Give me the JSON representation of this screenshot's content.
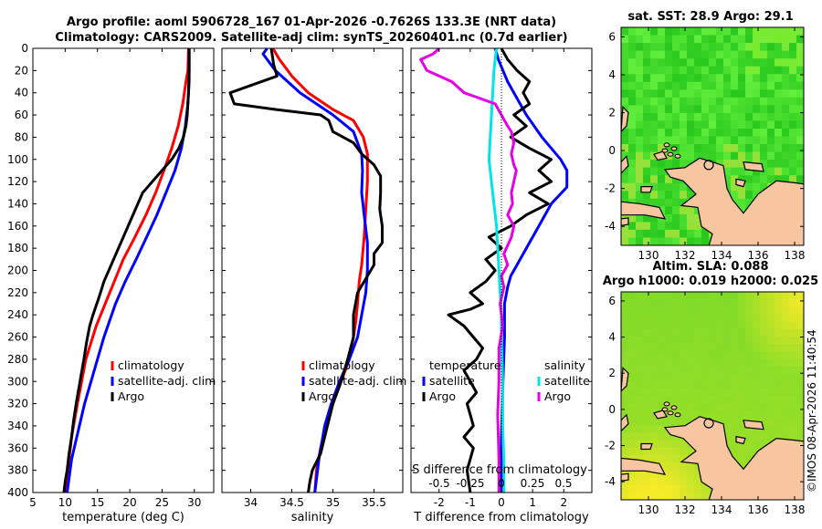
{
  "figure": {
    "title_line1": "Argo profile: aoml 5906728_167 01-Apr-2026 -0.7626S 133.3E (NRT data)",
    "title_line2": "Climatology: CARS2009. Satellite-adj clim: synTS_20260401.nc (0.7d earlier)",
    "watermark": "©IMOS 08-Apr-2026 11:40:54"
  },
  "colors": {
    "climatology": "#ff0000",
    "satellite": "#0000ff",
    "argo": "#000000",
    "salinity_satellite": "#00e5e5",
    "salinity_diff": "#e600e6"
  },
  "chart_data": [
    {
      "id": "temperature",
      "type": "line",
      "xlabel": "temperature (deg C)",
      "ylabel": "",
      "xlim": [
        5,
        33
      ],
      "ylim": [
        0,
        400
      ],
      "xticks": [
        5,
        10,
        15,
        20,
        25,
        30
      ],
      "yticks": [
        0,
        20,
        40,
        60,
        80,
        100,
        120,
        140,
        160,
        180,
        200,
        220,
        240,
        260,
        280,
        300,
        320,
        340,
        360,
        380,
        400
      ],
      "legend": [
        "climatology",
        "satellite-adj. clim",
        "Argo"
      ],
      "series": [
        {
          "name": "climatology",
          "x": [
            29.1,
            29.0,
            28.7,
            28.2,
            27.5,
            26.5,
            25.3,
            24.0,
            22.5,
            20.8,
            19.0,
            17.6,
            16.2,
            14.8,
            13.2,
            11.9,
            11.0,
            10.5,
            10.0
          ],
          "y": [
            0,
            20,
            30,
            50,
            70,
            90,
            110,
            130,
            150,
            170,
            190,
            210,
            230,
            250,
            280,
            320,
            350,
            375,
            400
          ]
        },
        {
          "name": "satellite-adj. clim",
          "x": [
            29.2,
            29.2,
            29.0,
            28.6,
            28.0,
            27.0,
            25.6,
            24.2,
            22.6,
            21.0,
            19.3,
            17.8,
            16.0,
            14.5,
            13.0,
            12.0,
            11.0,
            10.3
          ],
          "y": [
            0,
            30,
            50,
            70,
            90,
            110,
            130,
            150,
            170,
            190,
            210,
            230,
            260,
            290,
            320,
            345,
            370,
            400
          ]
        },
        {
          "name": "Argo",
          "x": [
            29.2,
            29.2,
            29.1,
            28.9,
            28.7,
            28.3,
            27.6,
            26.5,
            25.0,
            23.5,
            22.0,
            20.5,
            19.0,
            17.5,
            16.0,
            15.2,
            14.3,
            13.8,
            13.3,
            12.9,
            12.6,
            12.3,
            12.0,
            11.7,
            11.3,
            11.0,
            10.6,
            10.3,
            10.0,
            9.8
          ],
          "y": [
            0,
            20,
            40,
            60,
            70,
            80,
            90,
            100,
            110,
            120,
            130,
            150,
            170,
            190,
            210,
            225,
            240,
            250,
            265,
            280,
            290,
            300,
            310,
            320,
            335,
            350,
            365,
            380,
            390,
            400
          ]
        }
      ]
    },
    {
      "id": "salinity",
      "type": "line",
      "xlabel": "salinity",
      "ylabel": "",
      "xlim": [
        33.65,
        35.85
      ],
      "ylim": [
        0,
        400
      ],
      "xticks": [
        34,
        34.5,
        35,
        35.5
      ],
      "legend": [
        "climatology",
        "satellite-adj. clim",
        "Argo"
      ],
      "series": [
        {
          "name": "climatology",
          "x": [
            34.27,
            34.35,
            34.5,
            34.7,
            35.0,
            35.25,
            35.37,
            35.42,
            35.42,
            35.4,
            35.38,
            35.35,
            35.32,
            35.3,
            35.28,
            35.25,
            35.2,
            35.1,
            35.0,
            34.92,
            34.85,
            34.8,
            34.78
          ],
          "y": [
            0,
            10,
            25,
            40,
            55,
            65,
            80,
            95,
            120,
            145,
            170,
            195,
            210,
            230,
            245,
            260,
            280,
            300,
            320,
            340,
            360,
            380,
            400
          ]
        },
        {
          "name": "satellite-adj. clim",
          "x": [
            34.2,
            34.15,
            34.3,
            34.6,
            35.0,
            35.25,
            35.35,
            35.36,
            35.35,
            35.38,
            35.42,
            35.42,
            35.4,
            35.35,
            35.3,
            35.2,
            35.08,
            34.98,
            34.9,
            34.83,
            34.78
          ],
          "y": [
            0,
            5,
            20,
            40,
            60,
            75,
            95,
            110,
            130,
            150,
            175,
            200,
            220,
            240,
            260,
            280,
            300,
            320,
            340,
            370,
            400
          ]
        },
        {
          "name": "Argo",
          "x": [
            34.25,
            34.28,
            34.32,
            33.75,
            33.8,
            34.3,
            34.85,
            34.95,
            35.0,
            35.25,
            35.35,
            35.5,
            35.58,
            35.58,
            35.57,
            35.6,
            35.6,
            35.5,
            35.5,
            35.42,
            35.3,
            35.25,
            35.25,
            35.18,
            35.1,
            35.0,
            34.95,
            34.9,
            34.85,
            34.75,
            34.72,
            34.7
          ],
          "y": [
            0,
            15,
            25,
            40,
            50,
            55,
            60,
            65,
            75,
            85,
            95,
            105,
            115,
            130,
            145,
            160,
            175,
            185,
            195,
            205,
            220,
            240,
            260,
            280,
            300,
            320,
            335,
            350,
            365,
            380,
            390,
            400
          ]
        }
      ]
    },
    {
      "id": "difference",
      "type": "line",
      "xlabel": "T difference from climatology",
      "top_xlabel": "S difference from climatology",
      "xlim": [
        -2.9,
        2.9
      ],
      "ylim": [
        0,
        400
      ],
      "xticks": [
        -2,
        -1,
        0,
        1,
        2
      ],
      "top_xticks": [
        "-0.5",
        "-0.25",
        "0",
        "0.25",
        "0.5"
      ],
      "top_xtick_values": [
        -0.5,
        -0.25,
        0,
        0.25,
        0.5
      ],
      "legend_temperature": [
        "temperature",
        "satellite",
        "Argo"
      ],
      "legend_salinity": [
        "salinity",
        "satellite",
        "Argo"
      ],
      "series": [
        {
          "name": "temperature satellite",
          "x": [
            -0.2,
            -0.1,
            0.2,
            0.8,
            1.3,
            1.6,
            1.9,
            2.1,
            2.1,
            1.6,
            1.2,
            0.8,
            0.5,
            0.3,
            0.2,
            0.1,
            0.1,
            0.05,
            0.0,
            0.0
          ],
          "y": [
            0,
            10,
            30,
            60,
            80,
            90,
            100,
            110,
            125,
            140,
            160,
            180,
            195,
            205,
            215,
            230,
            260,
            300,
            350,
            400
          ]
        },
        {
          "name": "temperature Argo",
          "x": [
            0.0,
            0.2,
            0.5,
            0.9,
            0.7,
            0.9,
            0.4,
            0.8,
            0.3,
            0.9,
            1.6,
            1.2,
            1.6,
            0.9,
            1.5,
            0.8,
            0.3,
            -0.4,
            0.0,
            -0.5,
            -0.2,
            -0.5,
            -1.0,
            -0.6,
            -1.0,
            -1.7,
            -1.2,
            -0.9,
            -0.6,
            -0.8,
            -1.2,
            -1.0,
            -0.8,
            -1.1,
            -1.0,
            -0.9,
            -1.2,
            -0.9,
            -1.1,
            -1.0
          ],
          "y": [
            0,
            10,
            20,
            30,
            40,
            50,
            60,
            70,
            80,
            90,
            100,
            110,
            120,
            130,
            140,
            150,
            160,
            170,
            180,
            190,
            200,
            210,
            220,
            230,
            235,
            240,
            250,
            260,
            270,
            280,
            290,
            300,
            310,
            320,
            330,
            340,
            350,
            360,
            380,
            400
          ]
        },
        {
          "name": "salinity satellite",
          "x": [
            -0.04,
            -0.06,
            -0.07,
            -0.08,
            -0.09,
            -0.1,
            -0.08,
            -0.06,
            -0.04,
            -0.03,
            -0.02,
            -0.01,
            0.0,
            0.0,
            0.01,
            0.01,
            0.02,
            0.02
          ],
          "y": [
            0,
            20,
            40,
            60,
            80,
            100,
            120,
            140,
            160,
            180,
            200,
            220,
            240,
            260,
            300,
            340,
            370,
            400
          ]
        },
        {
          "name": "salinity Argo",
          "x": [
            -0.5,
            -0.55,
            -0.65,
            -0.6,
            -0.4,
            -0.3,
            -0.05,
            0.0,
            0.05,
            0.08,
            0.1,
            0.08,
            0.1,
            0.12,
            0.1,
            0.08,
            0.09,
            0.05,
            0.1,
            0.08,
            0.02,
            0.05,
            0.0,
            0.02,
            -0.01,
            0.01,
            -0.02,
            -0.02,
            -0.03,
            -0.02,
            -0.02
          ],
          "y": [
            0,
            5,
            10,
            20,
            30,
            40,
            50,
            60,
            70,
            75,
            85,
            95,
            105,
            110,
            120,
            130,
            140,
            150,
            160,
            170,
            185,
            195,
            205,
            215,
            230,
            250,
            270,
            300,
            330,
            370,
            400
          ]
        }
      ]
    },
    {
      "id": "sst-map",
      "type": "heatmap",
      "title": "sat. SST: 28.9 Argo: 29.1",
      "xlim": [
        128.5,
        138.5
      ],
      "ylim": [
        -5,
        6.5
      ],
      "xticks": [
        130,
        132,
        134,
        136,
        138
      ],
      "yticks": [
        -4,
        -2,
        0,
        2,
        4,
        6
      ],
      "marker": {
        "lon": 133.3,
        "lat": -0.7626
      }
    },
    {
      "id": "sla-map",
      "type": "heatmap",
      "title_line1": "Altim. SLA: 0.088",
      "title_line2": "Argo h1000: 0.019 h2000: 0.025",
      "xlim": [
        128.5,
        138.5
      ],
      "ylim": [
        -5,
        6.5
      ],
      "xticks": [
        130,
        132,
        134,
        136,
        138
      ],
      "yticks": [
        -4,
        -2,
        0,
        2,
        4,
        6
      ],
      "marker": {
        "lon": 133.3,
        "lat": -0.7626
      }
    }
  ]
}
